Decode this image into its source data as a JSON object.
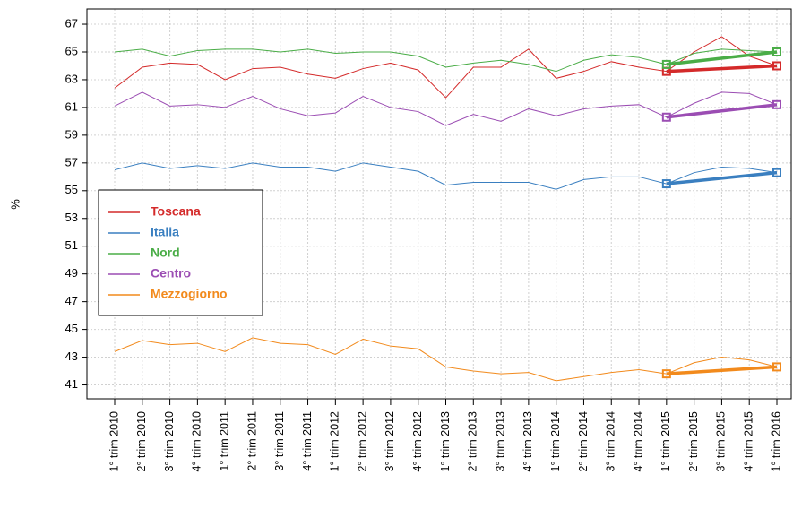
{
  "chart_data": {
    "type": "line",
    "y_label": "%",
    "categories": [
      "1° trim 2010",
      "2° trim 2010",
      "3° trim 2010",
      "4° trim 2010",
      "1° trim 2011",
      "2° trim 2011",
      "3° trim 2011",
      "4° trim 2011",
      "1° trim 2012",
      "2° trim 2012",
      "3° trim 2012",
      "4° trim 2012",
      "1° trim 2013",
      "2° trim 2013",
      "3° trim 2013",
      "4° trim 2013",
      "1° trim 2014",
      "2° trim 2014",
      "3° trim 2014",
      "4° trim 2014",
      "1° trim 2015",
      "2° trim 2015",
      "3° trim 2015",
      "4° trim 2015",
      "1° trim 2016"
    ],
    "series": [
      {
        "name": "Toscana",
        "color": "#d42a2a",
        "values": [
          62.4,
          63.9,
          64.2,
          64.1,
          63.0,
          63.8,
          63.9,
          63.4,
          63.1,
          63.8,
          64.2,
          63.7,
          61.7,
          63.9,
          63.9,
          65.2,
          63.1,
          63.6,
          64.3,
          63.9,
          63.6,
          65.0,
          66.1,
          64.7,
          64.0
        ]
      },
      {
        "name": "Italia",
        "color": "#3a7fc0",
        "values": [
          56.5,
          57.0,
          56.6,
          56.8,
          56.6,
          57.0,
          56.7,
          56.7,
          56.4,
          57.0,
          56.7,
          56.4,
          55.4,
          55.6,
          55.6,
          55.6,
          55.1,
          55.8,
          56.0,
          56.0,
          55.5,
          56.3,
          56.7,
          56.6,
          56.3
        ]
      },
      {
        "name": "Nord",
        "color": "#4aad47",
        "values": [
          65.0,
          65.2,
          64.7,
          65.1,
          65.2,
          65.2,
          65.0,
          65.2,
          64.9,
          65.0,
          65.0,
          64.7,
          63.9,
          64.2,
          64.4,
          64.1,
          63.6,
          64.4,
          64.8,
          64.6,
          64.1,
          64.9,
          65.2,
          65.1,
          65.0
        ]
      },
      {
        "name": "Centro",
        "color": "#9b4db3",
        "values": [
          61.1,
          62.1,
          61.1,
          61.2,
          61.0,
          61.8,
          60.9,
          60.4,
          60.6,
          61.8,
          61.0,
          60.7,
          59.7,
          60.5,
          60.0,
          60.9,
          60.4,
          60.9,
          61.1,
          61.2,
          60.3,
          61.3,
          62.1,
          62.0,
          61.2
        ]
      },
      {
        "name": "Mezzogiorno",
        "color": "#f28a1c",
        "values": [
          43.4,
          44.2,
          43.9,
          44.0,
          43.4,
          44.4,
          44.0,
          43.9,
          43.2,
          44.3,
          43.8,
          43.6,
          42.3,
          42.0,
          41.8,
          41.9,
          41.3,
          41.6,
          41.9,
          42.1,
          41.8,
          42.6,
          43.0,
          42.8,
          42.3
        ]
      }
    ],
    "ylim": [
      40,
      68.1
    ],
    "yticks": [
      41,
      43,
      45,
      47,
      49,
      51,
      53,
      55,
      57,
      59,
      61,
      63,
      65,
      67
    ],
    "grid": true
  }
}
